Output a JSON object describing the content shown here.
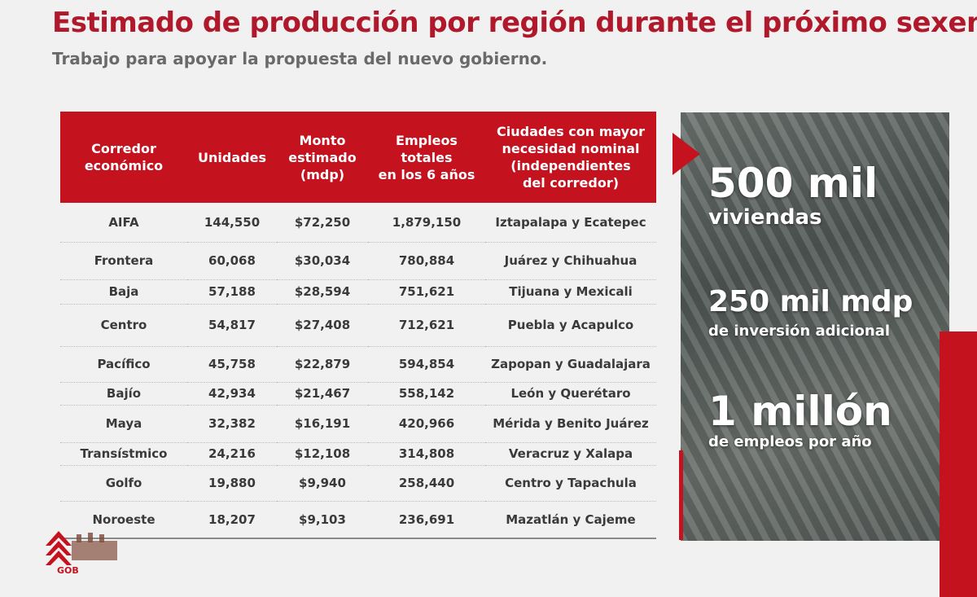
{
  "header": {
    "title": "Estimado de producción por región durante el próximo sexenio.",
    "subtitle": "Trabajo para apoyar la propuesta del nuevo gobierno."
  },
  "table": {
    "headers": [
      [
        "Corredor",
        "económico"
      ],
      [
        "Unidades"
      ],
      [
        "Monto",
        "estimado",
        "(mdp)"
      ],
      [
        "Empleos",
        "totales",
        "en los 6 años"
      ],
      [
        "Ciudades con mayor",
        "necesidad nominal",
        "(independientes",
        "del corredor)"
      ]
    ],
    "rows": [
      [
        "AIFA",
        "144,550",
        "$72,250",
        "1,879,150",
        "Iztapalapa y Ecatepec"
      ],
      [
        "Frontera",
        "60,068",
        "$30,034",
        "780,884",
        "Juárez y Chihuahua"
      ],
      [
        "Baja",
        "57,188",
        "$28,594",
        "751,621",
        "Tijuana y Mexicali"
      ],
      [
        "Centro",
        "54,817",
        "$27,408",
        "712,621",
        "Puebla y Acapulco"
      ],
      [
        "Pacífico",
        "45,758",
        "$22,879",
        "594,854",
        "Zapopan y Guadalajara"
      ],
      [
        "Bajío",
        "42,934",
        "$21,467",
        "558,142",
        "León y Querétaro"
      ],
      [
        "Maya",
        "32,382",
        "$16,191",
        "420,966",
        "Mérida y Benito Juárez"
      ],
      [
        "Transístmico",
        "24,216",
        "$12,108",
        "314,808",
        "Veracruz y Xalapa"
      ],
      [
        "Golfo",
        "19,880",
        "$9,940",
        "258,440",
        "Centro y Tapachula"
      ],
      [
        "Noroeste",
        "18,207",
        "$9,103",
        "236,691",
        "Mazatlán y Cajeme"
      ]
    ]
  },
  "highlights": {
    "stat1_big": "500 mil",
    "stat1_sub": "viviendas",
    "stat2_big": "250 mil mdp",
    "stat2_sub": "de inversión adicional",
    "stat3_big": "1 millón",
    "stat3_sub": "de empleos por año"
  },
  "logo": {
    "text": "GOB"
  },
  "colors": {
    "accent": "#c4121f",
    "title": "#b0192b",
    "subtitle": "#6a6a6a",
    "text": "#3a3a3a"
  },
  "icons": {
    "arrow": "triangle-right-arrow-icon",
    "logo": "government-logo"
  }
}
